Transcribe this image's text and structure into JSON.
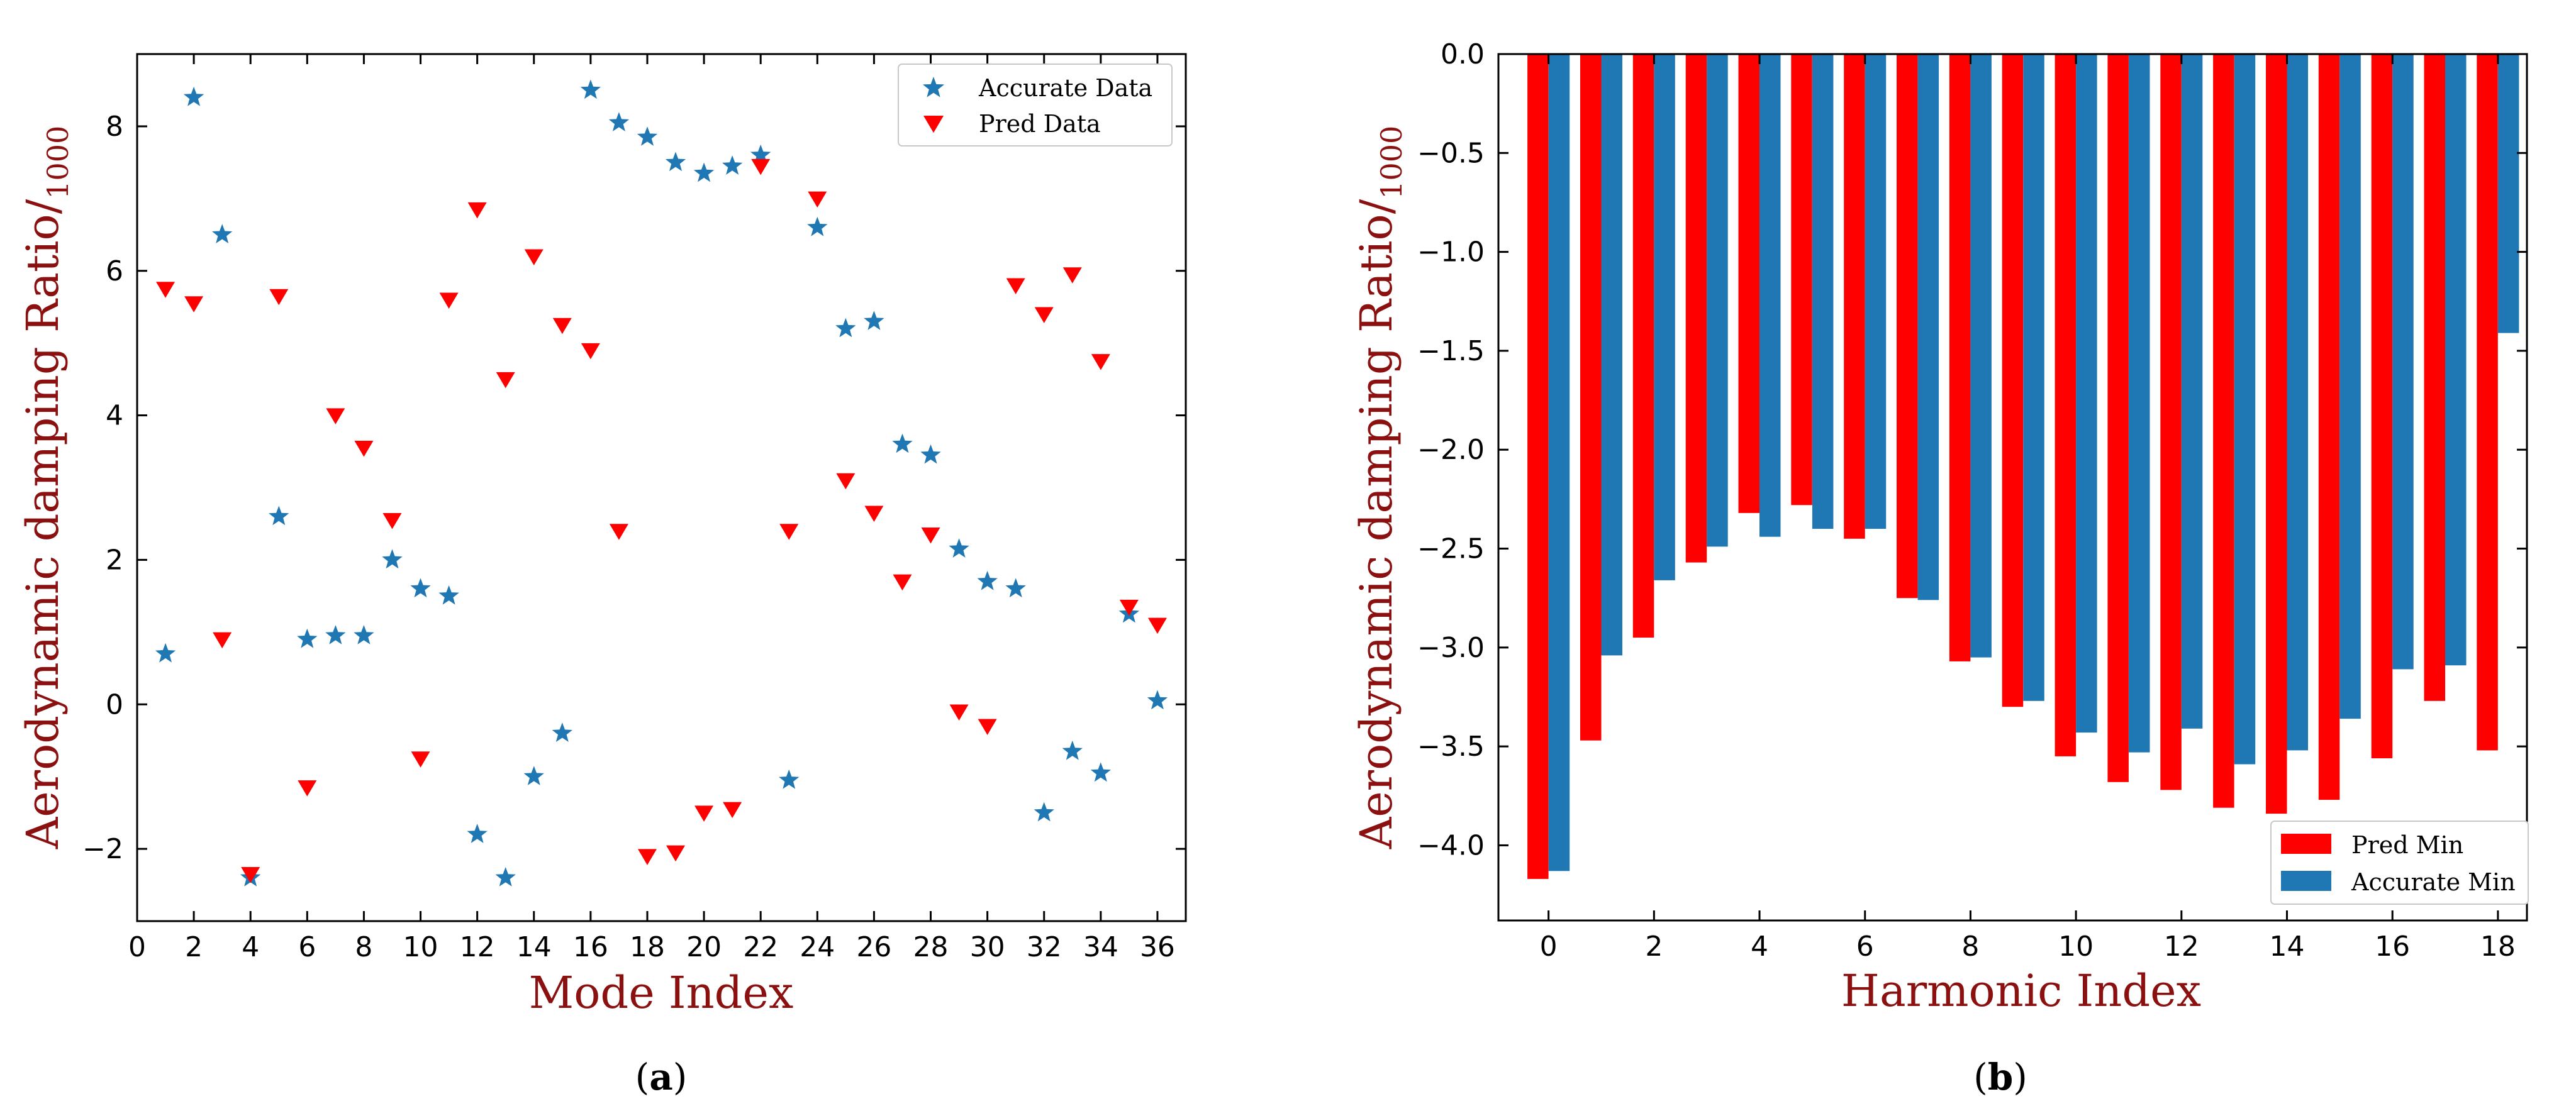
{
  "chart_data": [
    {
      "type": "scatter",
      "panel_label": "a",
      "xlabel": "Mode Index",
      "ylabel": "Aerodynamic damping Ratio/",
      "ylabel_sub": "1000",
      "xlim": [
        0,
        37
      ],
      "ylim": [
        -3,
        9
      ],
      "xticks": [
        0,
        2,
        4,
        6,
        8,
        10,
        12,
        14,
        16,
        18,
        20,
        22,
        24,
        26,
        28,
        30,
        32,
        34,
        36
      ],
      "yticks": [
        -2,
        0,
        2,
        4,
        6,
        8
      ],
      "legend_position": "top-right",
      "series": [
        {
          "name": "Accurate Data",
          "marker": "star",
          "color": "#1f77b4",
          "x": [
            1,
            2,
            3,
            4,
            5,
            6,
            7,
            8,
            9,
            10,
            11,
            12,
            13,
            14,
            15,
            16,
            17,
            18,
            19,
            20,
            21,
            22,
            23,
            24,
            25,
            26,
            27,
            28,
            29,
            30,
            31,
            32,
            33,
            34,
            35,
            36
          ],
          "y": [
            0.7,
            8.4,
            6.5,
            -2.4,
            2.6,
            0.9,
            0.95,
            0.95,
            2.0,
            1.6,
            1.5,
            -1.8,
            -2.4,
            -1.0,
            -0.4,
            8.5,
            8.05,
            7.85,
            7.5,
            7.35,
            7.45,
            7.6,
            -1.05,
            6.6,
            5.2,
            5.3,
            3.6,
            3.45,
            2.15,
            1.7,
            1.6,
            -1.5,
            -0.65,
            -0.95,
            1.25,
            0.05
          ]
        },
        {
          "name": "Pred Data",
          "marker": "triangle-down",
          "color": "#ff0000",
          "x": [
            1,
            2,
            3,
            4,
            5,
            6,
            7,
            8,
            9,
            10,
            11,
            12,
            13,
            14,
            15,
            16,
            17,
            18,
            19,
            20,
            21,
            22,
            23,
            24,
            25,
            26,
            27,
            28,
            29,
            30,
            31,
            32,
            33,
            34,
            35,
            36
          ],
          "y": [
            5.75,
            5.55,
            0.9,
            -2.35,
            5.65,
            -1.15,
            4.0,
            3.55,
            2.55,
            -0.75,
            5.6,
            6.85,
            4.5,
            6.2,
            5.25,
            4.9,
            2.4,
            -2.1,
            -2.05,
            -1.5,
            -1.45,
            7.45,
            2.4,
            7.0,
            3.1,
            2.65,
            1.7,
            2.35,
            -0.1,
            -0.3,
            5.8,
            5.4,
            5.95,
            4.75,
            1.35,
            1.1
          ]
        }
      ]
    },
    {
      "type": "bar",
      "panel_label": "b",
      "xlabel": "Harmonic Index",
      "ylabel": "Aerodynamic damping Ratio/",
      "ylabel_sub": "1000",
      "xlim": [
        -0.95,
        18.55
      ],
      "ylim": [
        -4.38,
        0
      ],
      "categories": [
        0,
        1,
        2,
        3,
        4,
        5,
        6,
        7,
        8,
        9,
        10,
        11,
        12,
        13,
        14,
        15,
        16,
        17,
        18
      ],
      "xticks": [
        0,
        2,
        4,
        6,
        8,
        10,
        12,
        14,
        16,
        18
      ],
      "yticks": [
        -4.0,
        -3.5,
        -3.0,
        -2.5,
        -2.0,
        -1.5,
        -1.0,
        -0.5,
        0.0
      ],
      "ytick_labels": [
        "−4.0",
        "−3.5",
        "−3.0",
        "−2.5",
        "−2.0",
        "−1.5",
        "−1.0",
        "−0.5",
        "0.0"
      ],
      "legend_position": "bottom-right",
      "series": [
        {
          "name": "Pred Min",
          "color": "#ff0000",
          "values": [
            -4.17,
            -3.47,
            -2.95,
            -2.57,
            -2.32,
            -2.28,
            -2.45,
            -2.75,
            -3.07,
            -3.3,
            -3.55,
            -3.68,
            -3.72,
            -3.81,
            -3.84,
            -3.77,
            -3.56,
            -3.27,
            -3.52
          ]
        },
        {
          "name": "Accurate Min",
          "color": "#1f77b4",
          "values": [
            -4.13,
            -3.04,
            -2.66,
            -2.49,
            -2.44,
            -2.4,
            -2.4,
            -2.76,
            -3.05,
            -3.27,
            -3.43,
            -3.53,
            -3.41,
            -3.59,
            -3.52,
            -3.36,
            -3.11,
            -3.09,
            -1.41
          ]
        }
      ]
    }
  ]
}
